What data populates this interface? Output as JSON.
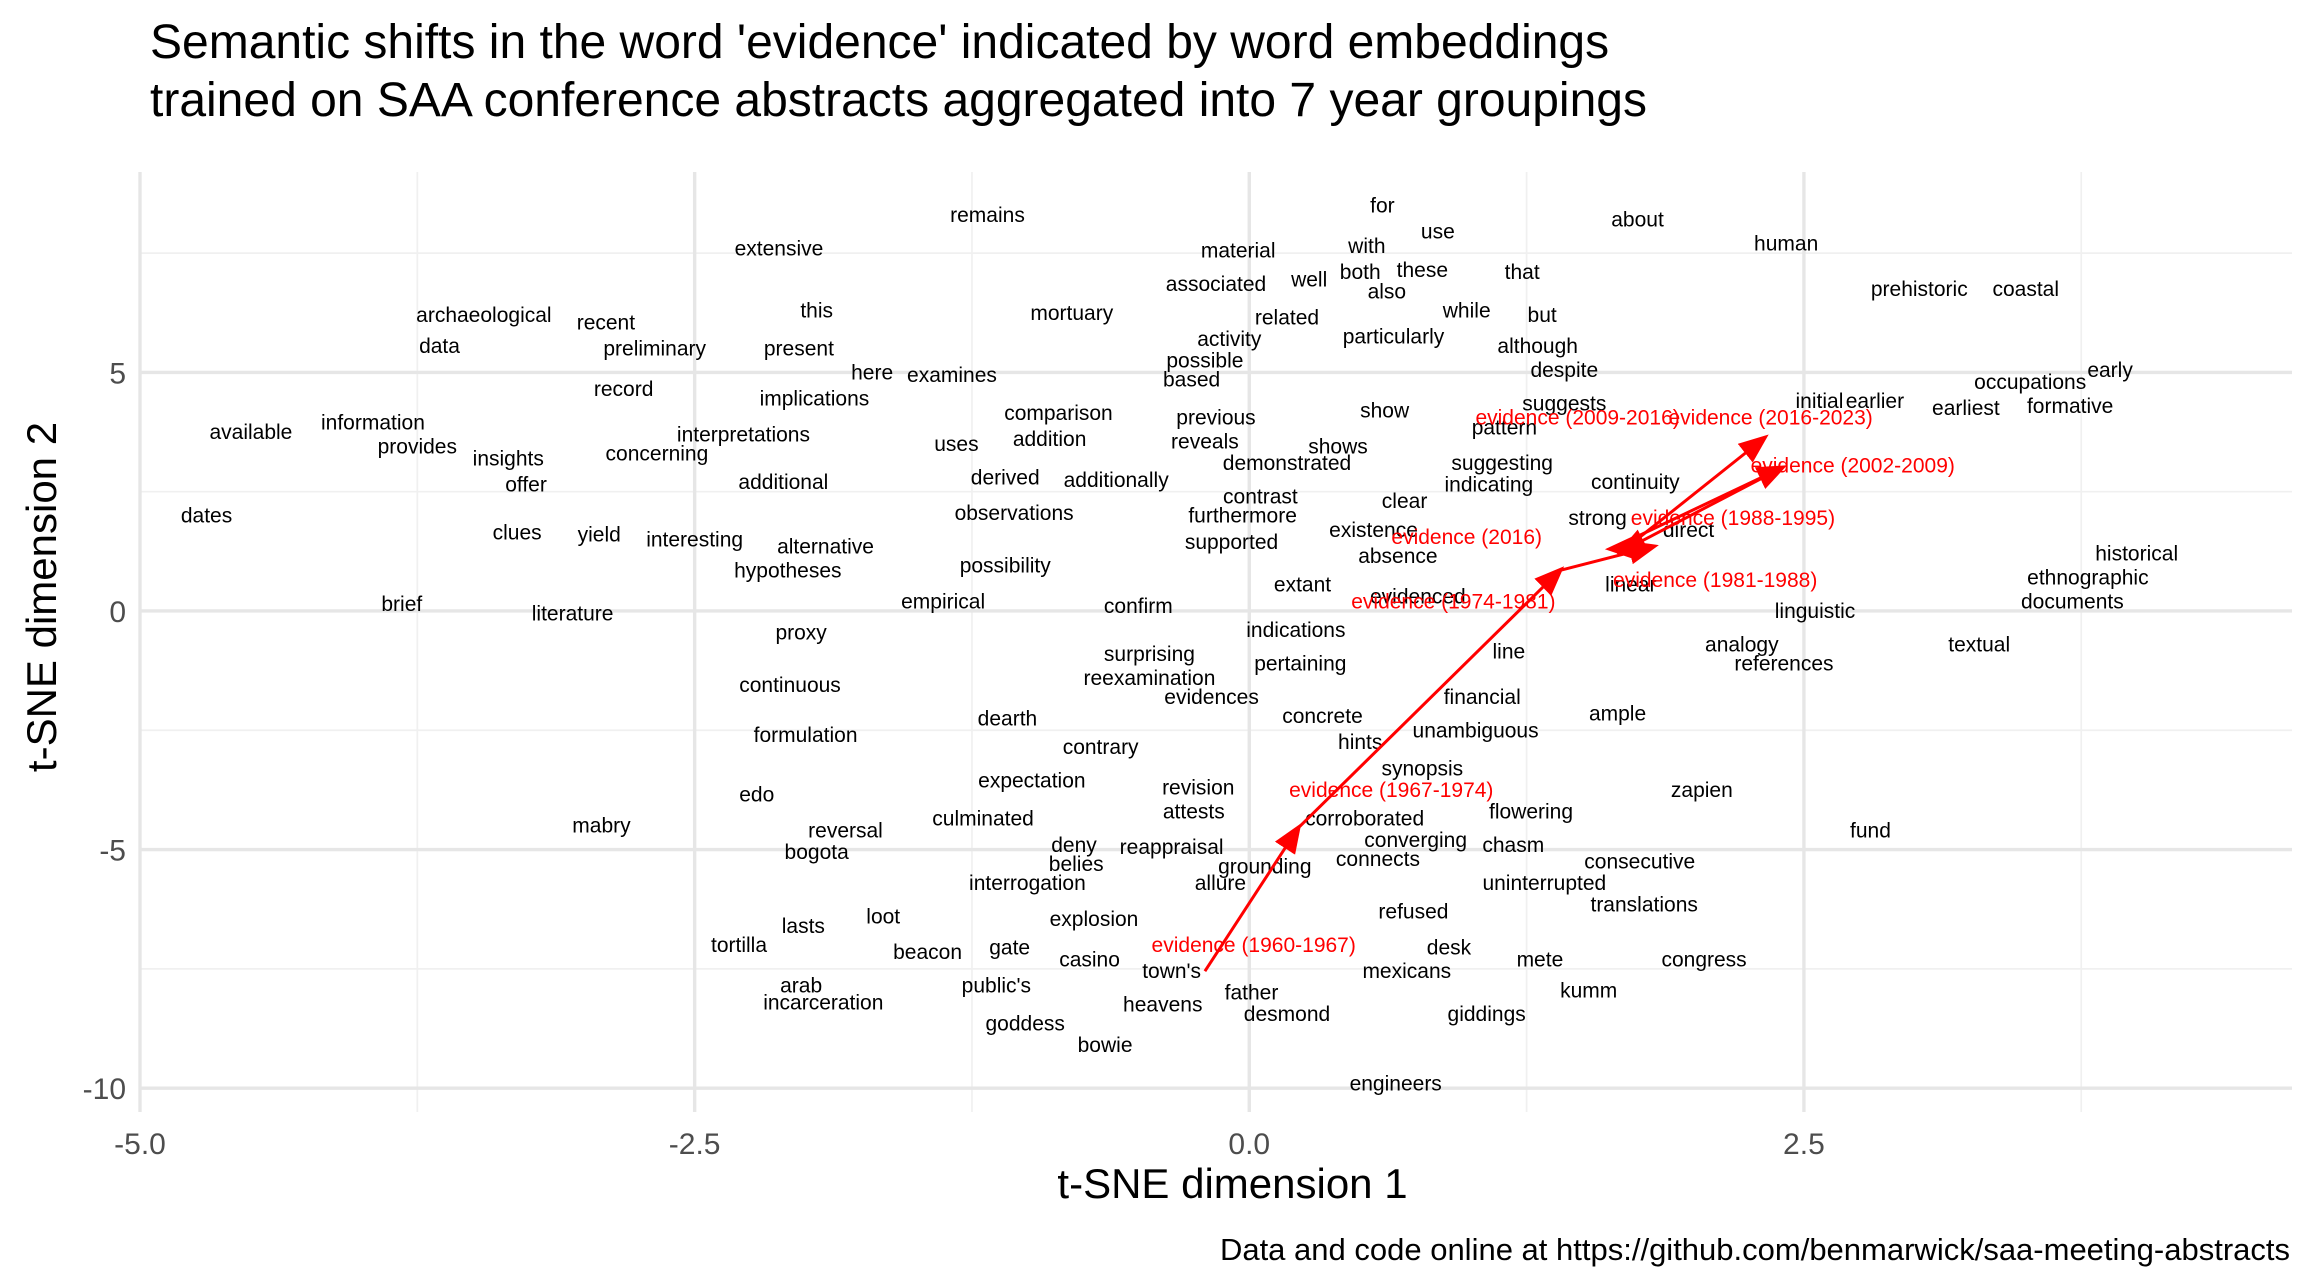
{
  "chart_data": {
    "type": "scatter",
    "title": "Semantic shifts in the word 'evidence' indicated by word embeddings\ntrained on SAA conference abstracts aggregated into 7 year groupings",
    "xlabel": "t-SNE dimension 1",
    "ylabel": "t-SNE dimension 2",
    "caption": "Data and code online at https://github.com/benmarwick/saa-meeting-abstracts",
    "xlim": [
      -5.0,
      4.7
    ],
    "ylim": [
      -10.5,
      9.2
    ],
    "xticks": [
      -5.0,
      -2.5,
      0.0,
      2.5
    ],
    "xtick_labels": [
      "-5.0",
      "-2.5",
      "0.0",
      "2.5"
    ],
    "yticks": [
      -10,
      -5,
      0,
      5
    ],
    "ytick_labels": [
      "-10",
      "-5",
      "0",
      "5"
    ],
    "grid": true,
    "colors": {
      "words": "#000000",
      "evidence": "#ff0000",
      "grid": "#e6e6e6"
    },
    "words": [
      {
        "label": "for",
        "x": 0.6,
        "y": 8.5
      },
      {
        "label": "use",
        "x": 0.85,
        "y": 7.95
      },
      {
        "label": "about",
        "x": 1.75,
        "y": 8.2
      },
      {
        "label": "remains",
        "x": -1.18,
        "y": 8.3
      },
      {
        "label": "material",
        "x": -0.05,
        "y": 7.55
      },
      {
        "label": "with",
        "x": 0.53,
        "y": 7.65
      },
      {
        "label": "human",
        "x": 2.42,
        "y": 7.7
      },
      {
        "label": "extensive",
        "x": -2.12,
        "y": 7.6
      },
      {
        "label": "these",
        "x": 0.78,
        "y": 7.15
      },
      {
        "label": "that",
        "x": 1.23,
        "y": 7.1
      },
      {
        "label": "both",
        "x": 0.5,
        "y": 7.1
      },
      {
        "label": "well",
        "x": 0.27,
        "y": 6.95
      },
      {
        "label": "also",
        "x": 0.62,
        "y": 6.7
      },
      {
        "label": "associated",
        "x": -0.15,
        "y": 6.85
      },
      {
        "label": "prehistoric",
        "x": 3.02,
        "y": 6.75
      },
      {
        "label": "coastal",
        "x": 3.5,
        "y": 6.75
      },
      {
        "label": "while",
        "x": 0.98,
        "y": 6.3
      },
      {
        "label": "but",
        "x": 1.32,
        "y": 6.2
      },
      {
        "label": "this",
        "x": -1.95,
        "y": 6.3
      },
      {
        "label": "mortuary",
        "x": -0.8,
        "y": 6.25
      },
      {
        "label": "related",
        "x": 0.17,
        "y": 6.15
      },
      {
        "label": "archaeological",
        "x": -3.45,
        "y": 6.2
      },
      {
        "label": "recent",
        "x": -2.9,
        "y": 6.05
      },
      {
        "label": "particularly",
        "x": 0.65,
        "y": 5.75
      },
      {
        "label": "activity",
        "x": -0.09,
        "y": 5.7
      },
      {
        "label": "although",
        "x": 1.3,
        "y": 5.55
      },
      {
        "label": "data",
        "x": -3.65,
        "y": 5.55
      },
      {
        "label": "preliminary",
        "x": -2.68,
        "y": 5.5
      },
      {
        "label": "present",
        "x": -2.03,
        "y": 5.5
      },
      {
        "label": "possible",
        "x": -0.2,
        "y": 5.25
      },
      {
        "label": "despite",
        "x": 1.42,
        "y": 5.05
      },
      {
        "label": "early",
        "x": 3.88,
        "y": 5.05
      },
      {
        "label": "here",
        "x": -1.7,
        "y": 5.0
      },
      {
        "label": "examines",
        "x": -1.34,
        "y": 4.95
      },
      {
        "label": "based",
        "x": -0.26,
        "y": 4.85
      },
      {
        "label": "occupations",
        "x": 3.52,
        "y": 4.8
      },
      {
        "label": "record",
        "x": -2.82,
        "y": 4.65
      },
      {
        "label": "implications",
        "x": -1.96,
        "y": 4.45
      },
      {
        "label": "initial",
        "x": 2.57,
        "y": 4.4
      },
      {
        "label": "earlier",
        "x": 2.82,
        "y": 4.4
      },
      {
        "label": "suggests",
        "x": 1.42,
        "y": 4.35
      },
      {
        "label": "formative",
        "x": 3.7,
        "y": 4.3
      },
      {
        "label": "earliest",
        "x": 3.23,
        "y": 4.25
      },
      {
        "label": "show",
        "x": 0.61,
        "y": 4.2
      },
      {
        "label": "comparison",
        "x": -0.86,
        "y": 4.15
      },
      {
        "label": "previous",
        "x": -0.15,
        "y": 4.05
      },
      {
        "label": "information",
        "x": -3.95,
        "y": 3.95
      },
      {
        "label": "pattern",
        "x": 1.15,
        "y": 3.85
      },
      {
        "label": "available",
        "x": -4.5,
        "y": 3.75
      },
      {
        "label": "interpretations",
        "x": -2.28,
        "y": 3.7
      },
      {
        "label": "addition",
        "x": -0.9,
        "y": 3.6
      },
      {
        "label": "reveals",
        "x": -0.2,
        "y": 3.55
      },
      {
        "label": "uses",
        "x": -1.32,
        "y": 3.5
      },
      {
        "label": "shows",
        "x": 0.4,
        "y": 3.45
      },
      {
        "label": "provides",
        "x": -3.75,
        "y": 3.45
      },
      {
        "label": "concerning",
        "x": -2.67,
        "y": 3.3
      },
      {
        "label": "insights",
        "x": -3.34,
        "y": 3.2
      },
      {
        "label": "demonstrated",
        "x": 0.17,
        "y": 3.1
      },
      {
        "label": "suggesting",
        "x": 1.14,
        "y": 3.1
      },
      {
        "label": "derived",
        "x": -1.1,
        "y": 2.8
      },
      {
        "label": "additionally",
        "x": -0.6,
        "y": 2.75
      },
      {
        "label": "additional",
        "x": -2.1,
        "y": 2.7
      },
      {
        "label": "continuity",
        "x": 1.74,
        "y": 2.7
      },
      {
        "label": "offer",
        "x": -3.26,
        "y": 2.65
      },
      {
        "label": "indicating",
        "x": 1.08,
        "y": 2.65
      },
      {
        "label": "contrast",
        "x": 0.05,
        "y": 2.4
      },
      {
        "label": "clear",
        "x": 0.7,
        "y": 2.3
      },
      {
        "label": "observations",
        "x": -1.06,
        "y": 2.05
      },
      {
        "label": "furthermore",
        "x": -0.03,
        "y": 2.0
      },
      {
        "label": "dates",
        "x": -4.7,
        "y": 2.0
      },
      {
        "label": "strong",
        "x": 1.57,
        "y": 1.95
      },
      {
        "label": "direct",
        "x": 1.98,
        "y": 1.7
      },
      {
        "label": "existence",
        "x": 0.56,
        "y": 1.7
      },
      {
        "label": "clues",
        "x": -3.3,
        "y": 1.65
      },
      {
        "label": "yield",
        "x": -2.93,
        "y": 1.6
      },
      {
        "label": "interesting",
        "x": -2.5,
        "y": 1.5
      },
      {
        "label": "supported",
        "x": -0.08,
        "y": 1.45
      },
      {
        "label": "alternative",
        "x": -1.91,
        "y": 1.35
      },
      {
        "label": "historical",
        "x": 4.0,
        "y": 1.2
      },
      {
        "label": "absence",
        "x": 0.67,
        "y": 1.15
      },
      {
        "label": "possibility",
        "x": -1.1,
        "y": 0.95
      },
      {
        "label": "hypotheses",
        "x": -2.08,
        "y": 0.85
      },
      {
        "label": "ethnographic",
        "x": 3.78,
        "y": 0.7
      },
      {
        "label": "extant",
        "x": 0.24,
        "y": 0.55
      },
      {
        "label": "linear",
        "x": 1.72,
        "y": 0.55
      },
      {
        "label": "evidenced",
        "x": 0.76,
        "y": 0.3
      },
      {
        "label": "empirical",
        "x": -1.38,
        "y": 0.2
      },
      {
        "label": "documents",
        "x": 3.71,
        "y": 0.2
      },
      {
        "label": "brief",
        "x": -3.82,
        "y": 0.15
      },
      {
        "label": "linguistic",
        "x": 2.55,
        "y": 0.0
      },
      {
        "label": "confirm",
        "x": -0.5,
        "y": 0.1
      },
      {
        "label": "literature",
        "x": -3.05,
        "y": -0.05
      },
      {
        "label": "indications",
        "x": 0.21,
        "y": -0.4
      },
      {
        "label": "proxy",
        "x": -2.02,
        "y": -0.45
      },
      {
        "label": "textual",
        "x": 3.29,
        "y": -0.7
      },
      {
        "label": "analogy",
        "x": 2.22,
        "y": -0.7
      },
      {
        "label": "line",
        "x": 1.17,
        "y": -0.85
      },
      {
        "label": "surprising",
        "x": -0.45,
        "y": -0.9
      },
      {
        "label": "pertaining",
        "x": 0.23,
        "y": -1.1
      },
      {
        "label": "references",
        "x": 2.41,
        "y": -1.1
      },
      {
        "label": "reexamination",
        "x": -0.45,
        "y": -1.4
      },
      {
        "label": "continuous",
        "x": -2.07,
        "y": -1.55
      },
      {
        "label": "evidences",
        "x": -0.17,
        "y": -1.8
      },
      {
        "label": "financial",
        "x": 1.05,
        "y": -1.8
      },
      {
        "label": "concrete",
        "x": 0.33,
        "y": -2.2
      },
      {
        "label": "dearth",
        "x": -1.09,
        "y": -2.25
      },
      {
        "label": "ample",
        "x": 1.66,
        "y": -2.15
      },
      {
        "label": "unambiguous",
        "x": 1.02,
        "y": -2.5
      },
      {
        "label": "formulation",
        "x": -2.0,
        "y": -2.6
      },
      {
        "label": "hints",
        "x": 0.5,
        "y": -2.75
      },
      {
        "label": "contrary",
        "x": -0.67,
        "y": -2.85
      },
      {
        "label": "synopsis",
        "x": 0.78,
        "y": -3.3
      },
      {
        "label": "expectation",
        "x": -0.98,
        "y": -3.55
      },
      {
        "label": "revision",
        "x": -0.23,
        "y": -3.7
      },
      {
        "label": "evidence (1967-1974)",
        "x": 0.64,
        "y": -3.75
      },
      {
        "label": "zapien",
        "x": 2.04,
        "y": -3.75
      },
      {
        "label": "edo",
        "x": -2.22,
        "y": -3.85
      },
      {
        "label": "attests",
        "x": -0.25,
        "y": -4.2
      },
      {
        "label": "flowering",
        "x": 1.27,
        "y": -4.2
      },
      {
        "label": "corroborated",
        "x": 0.52,
        "y": -4.35
      },
      {
        "label": "culminated",
        "x": -1.2,
        "y": -4.35
      },
      {
        "label": "mabry",
        "x": -2.92,
        "y": -4.5
      },
      {
        "label": "reversal",
        "x": -1.82,
        "y": -4.6
      },
      {
        "label": "fund",
        "x": 2.8,
        "y": -4.6
      },
      {
        "label": "converging",
        "x": 0.75,
        "y": -4.8
      },
      {
        "label": "chasm",
        "x": 1.19,
        "y": -4.9
      },
      {
        "label": "deny",
        "x": -0.79,
        "y": -4.9
      },
      {
        "label": "reappraisal",
        "x": -0.35,
        "y": -4.95
      },
      {
        "label": "bogota",
        "x": -1.95,
        "y": -5.05
      },
      {
        "label": "consecutive",
        "x": 1.76,
        "y": -5.25
      },
      {
        "label": "connects",
        "x": 0.58,
        "y": -5.2
      },
      {
        "label": "belies",
        "x": -0.78,
        "y": -5.3
      },
      {
        "label": "grounding",
        "x": 0.07,
        "y": -5.35
      },
      {
        "label": "allure",
        "x": -0.13,
        "y": -5.7
      },
      {
        "label": "uninterrupted",
        "x": 1.33,
        "y": -5.7
      },
      {
        "label": "interrogation",
        "x": -1.0,
        "y": -5.7
      },
      {
        "label": "translations",
        "x": 1.78,
        "y": -6.15
      },
      {
        "label": "refused",
        "x": 0.74,
        "y": -6.3
      },
      {
        "label": "loot",
        "x": -1.65,
        "y": -6.4
      },
      {
        "label": "explosion",
        "x": -0.7,
        "y": -6.45
      },
      {
        "label": "lasts",
        "x": -2.01,
        "y": -6.6
      },
      {
        "label": "tortilla",
        "x": -2.3,
        "y": -7.0
      },
      {
        "label": "gate",
        "x": -1.08,
        "y": -7.05
      },
      {
        "label": "beacon",
        "x": -1.45,
        "y": -7.15
      },
      {
        "label": "desk",
        "x": 0.9,
        "y": -7.05
      },
      {
        "label": "casino",
        "x": -0.72,
        "y": -7.3
      },
      {
        "label": "mete",
        "x": 1.31,
        "y": -7.3
      },
      {
        "label": "congress",
        "x": 2.05,
        "y": -7.3
      },
      {
        "label": "town's",
        "x": -0.35,
        "y": -7.55
      },
      {
        "label": "mexicans",
        "x": 0.71,
        "y": -7.55
      },
      {
        "label": "public's",
        "x": -1.14,
        "y": -7.85
      },
      {
        "label": "arab",
        "x": -2.02,
        "y": -7.85
      },
      {
        "label": "kumm",
        "x": 1.53,
        "y": -7.95
      },
      {
        "label": "father",
        "x": 0.01,
        "y": -8.0
      },
      {
        "label": "incarceration",
        "x": -1.92,
        "y": -8.2
      },
      {
        "label": "heavens",
        "x": -0.39,
        "y": -8.25
      },
      {
        "label": "desmond",
        "x": 0.17,
        "y": -8.45
      },
      {
        "label": "giddings",
        "x": 1.07,
        "y": -8.45
      },
      {
        "label": "goddess",
        "x": -1.01,
        "y": -8.65
      },
      {
        "label": "bowie",
        "x": -0.65,
        "y": -9.1
      },
      {
        "label": "engineers",
        "x": 0.66,
        "y": -9.9
      }
    ],
    "evidence_labels": [
      {
        "label": "evidence (2009-2016)",
        "x": 1.48,
        "y": 4.05
      },
      {
        "label": "evidence (2016-2023)",
        "x": 2.35,
        "y": 4.05
      },
      {
        "label": "evidence (2002-2009)",
        "x": 2.72,
        "y": 3.05
      },
      {
        "label": "evidence (1988-1995)",
        "x": 2.18,
        "y": 1.95
      },
      {
        "label": "evidence (2016)",
        "x": 0.98,
        "y": 1.55
      },
      {
        "label": "evidence (1981-1988)",
        "x": 2.1,
        "y": 0.65
      },
      {
        "label": "evidence (1974-1981)",
        "x": 0.92,
        "y": 0.2
      },
      {
        "label": "evidence (1960-1967)",
        "x": 0.02,
        "y": -7.0
      }
    ],
    "trajectory": [
      {
        "period": "1960-1967",
        "x": -0.2,
        "y": -7.55
      },
      {
        "period": "1967-1974",
        "x": 0.22,
        "y": -4.55
      },
      {
        "period": "1974-1981",
        "x": 1.4,
        "y": 0.85
      },
      {
        "period": "1981-1988",
        "x": 1.82,
        "y": 1.35
      },
      {
        "period": "1988-1995",
        "x": 1.63,
        "y": 1.3
      },
      {
        "period": "2002-2009",
        "x": 2.4,
        "y": 3.0
      },
      {
        "period": "2009-2016",
        "x": 1.68,
        "y": 1.25
      },
      {
        "period": "2016-2023",
        "x": 2.32,
        "y": 3.62
      }
    ]
  }
}
